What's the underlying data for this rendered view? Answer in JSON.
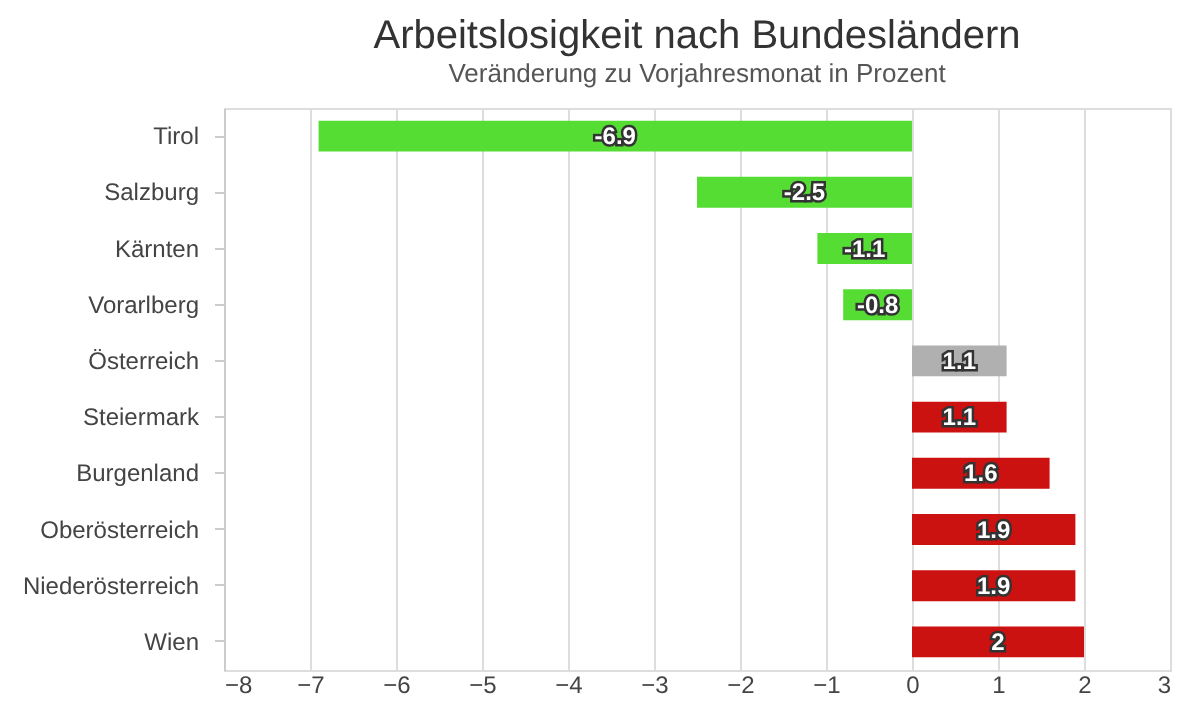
{
  "chart_data": {
    "type": "bar",
    "orientation": "horizontal",
    "title": "Arbeitslosigkeit nach Bundesländern",
    "subtitle": "Veränderung zu Vorjahresmonat in Prozent",
    "categories": [
      "Tirol",
      "Salzburg",
      "Kärnten",
      "Vorarlberg",
      "Österreich",
      "Steiermark",
      "Burgenland",
      "Oberösterreich",
      "Niederösterreich",
      "Wien"
    ],
    "values": [
      -6.9,
      -2.5,
      -1.1,
      -0.8,
      1.1,
      1.1,
      1.6,
      1.9,
      1.9,
      2
    ],
    "colors": [
      "#55dd33",
      "#55dd33",
      "#55dd33",
      "#55dd33",
      "#b0b0b0",
      "#cc1111",
      "#cc1111",
      "#cc1111",
      "#cc1111",
      "#cc1111"
    ],
    "xlim": [
      -8,
      3
    ],
    "xticks": [
      -8,
      -7,
      -6,
      -5,
      -4,
      -3,
      -2,
      -1,
      0,
      1,
      2,
      3
    ],
    "grid": "x",
    "data_labels": true
  }
}
